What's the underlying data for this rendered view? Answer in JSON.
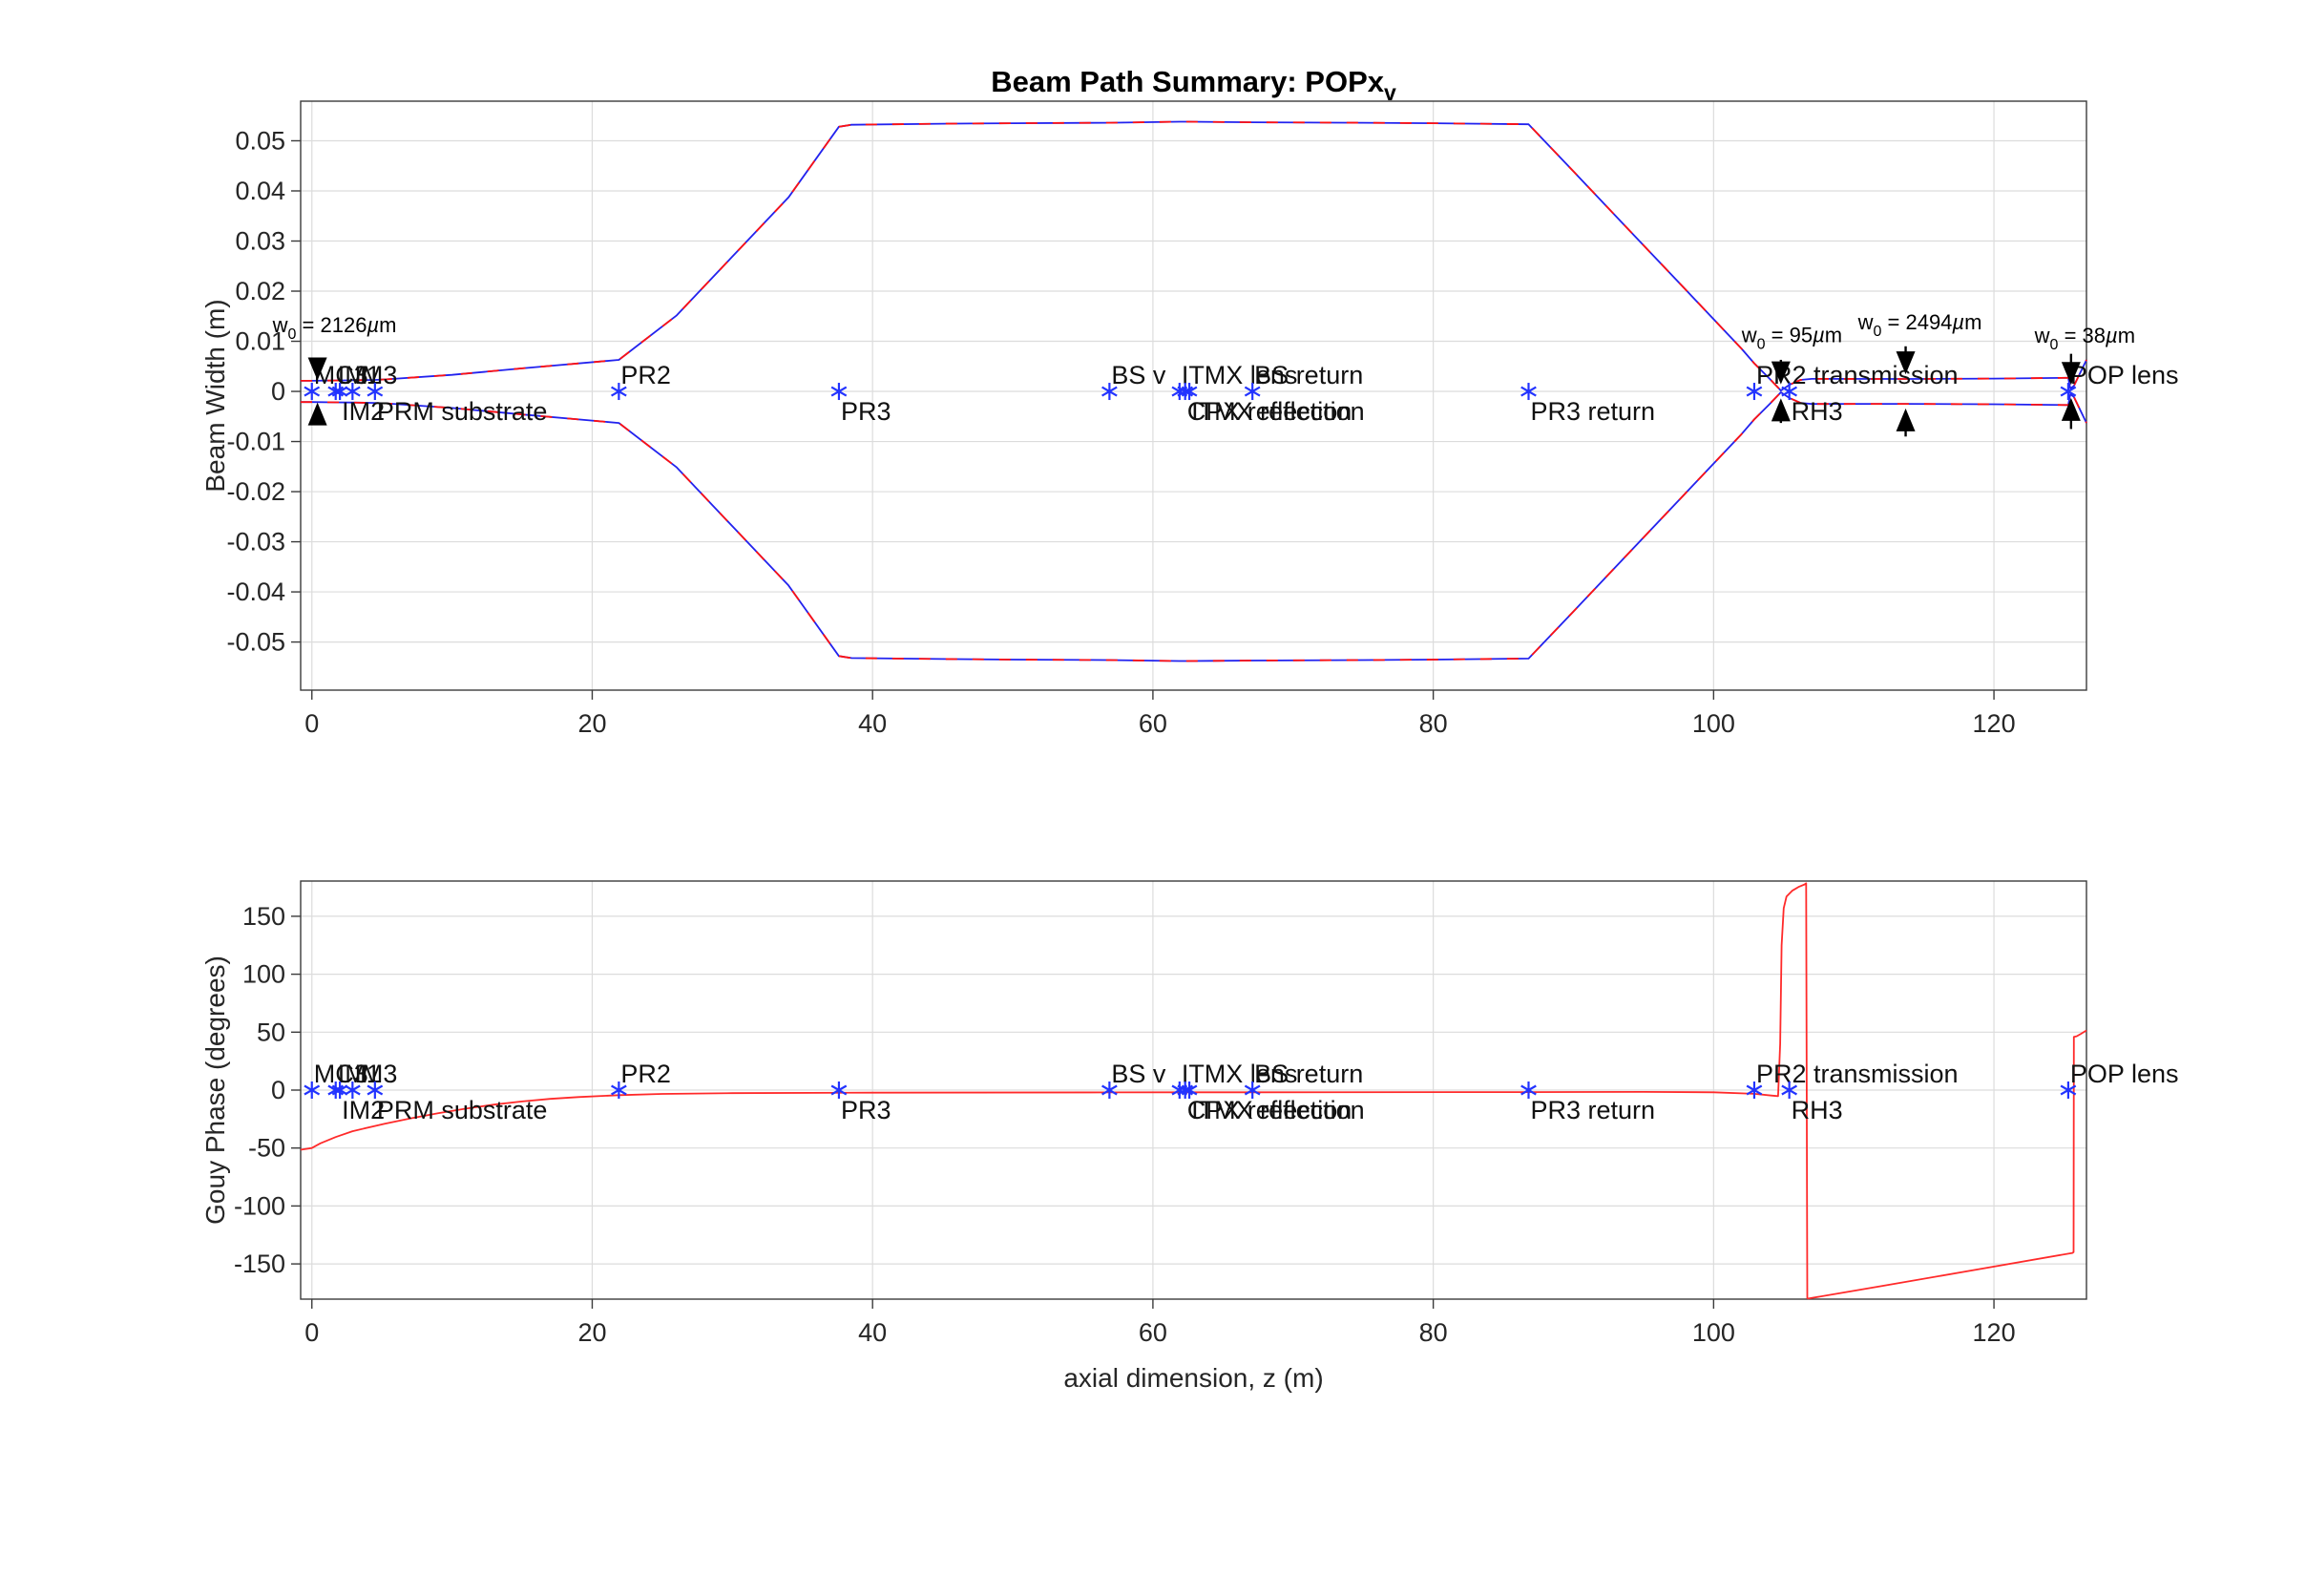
{
  "figure": {
    "background": "#ffffff",
    "title": "Beam Path Summary: POPx_v",
    "title_main": "Beam Path Summary: POPx",
    "title_subscript": "v"
  },
  "colors": {
    "beam_blue": "#2222ee",
    "beam_red": "#ff1111",
    "marker_blue": "#2233ff",
    "gouy_red": "#ff2a2a",
    "axis": "#3b3b3b",
    "grid": "#dcdcdc",
    "text": "#111111",
    "annotation": "#000000"
  },
  "chart_data": [
    {
      "type": "line",
      "title": "Beam Path Summary: POPx_v",
      "ylabel": "Beam Width (m)",
      "xlabel": "",
      "xlim": [
        -0.8,
        126.6
      ],
      "ylim": [
        -0.0596,
        0.0579
      ],
      "xticks": [
        0,
        20,
        40,
        60,
        80,
        100,
        120
      ],
      "yticks": [
        0.05,
        0.04,
        0.03,
        0.02,
        0.01,
        0,
        -0.01,
        -0.02,
        -0.03,
        -0.04,
        -0.05
      ],
      "grid": true,
      "legend": "none",
      "series": [
        {
          "name": "beam envelope (blue trace)",
          "color": "#2222ee",
          "style": "solid",
          "mirrored": true
        },
        {
          "name": "beam envelope (red trace)",
          "color": "#ff1111",
          "style": "dashed-overlay",
          "mirrored": true
        }
      ],
      "envelope_zw": [
        [
          -0.8,
          0.00212
        ],
        [
          0,
          0.00213
        ],
        [
          1.7,
          0.00218
        ],
        [
          2.9,
          0.00222
        ],
        [
          4.5,
          0.0023
        ],
        [
          5.2,
          0.00238
        ],
        [
          10,
          0.0033
        ],
        [
          15,
          0.0046
        ],
        [
          21.9,
          0.0063
        ],
        [
          26,
          0.0151
        ],
        [
          30,
          0.0269
        ],
        [
          34,
          0.0387
        ],
        [
          37.6,
          0.0528
        ],
        [
          38.5,
          0.0532
        ],
        [
          45,
          0.0534
        ],
        [
          50,
          0.0535
        ],
        [
          56.9,
          0.0536
        ],
        [
          61.9,
          0.0538
        ],
        [
          62.5,
          0.0538
        ],
        [
          67.1,
          0.0537
        ],
        [
          75,
          0.0536
        ],
        [
          80,
          0.0535
        ],
        [
          86.8,
          0.0533
        ],
        [
          90,
          0.0439
        ],
        [
          94,
          0.0321
        ],
        [
          98,
          0.0203
        ],
        [
          102,
          0.0085
        ],
        [
          102.9,
          0.0056
        ],
        [
          104,
          0.0025
        ],
        [
          104.8,
          0.00018
        ],
        [
          105.4,
          0.0013
        ],
        [
          106.2,
          0.0023
        ],
        [
          107,
          0.0025
        ],
        [
          113.7,
          0.00249
        ],
        [
          120,
          0.00256
        ],
        [
          125.3,
          0.00272
        ],
        [
          125.45,
          0.00055
        ],
        [
          125.7,
          0.0011
        ],
        [
          126.6,
          0.0063
        ]
      ],
      "optics": [
        {
          "label": "MC3",
          "z": 0,
          "row": "top"
        },
        {
          "label": "IM1",
          "z": 1.7,
          "row": "top"
        },
        {
          "label": "IM2",
          "z": 2.0,
          "row": "bottom"
        },
        {
          "label": "IM3",
          "z": 2.9,
          "row": "top"
        },
        {
          "label": "PRM substrate",
          "z": 4.5,
          "row": "bottom"
        },
        {
          "label": "PR2",
          "z": 21.9,
          "row": "top"
        },
        {
          "label": "PR3",
          "z": 37.6,
          "row": "bottom"
        },
        {
          "label": "BS v",
          "z": 56.9,
          "row": "top"
        },
        {
          "label": "ITMX lens",
          "z": 61.9,
          "row": "top"
        },
        {
          "label": "CPX reflection",
          "z": 62.3,
          "row": "bottom"
        },
        {
          "label": "ITMX reflection",
          "z": 62.6,
          "row": "bottom"
        },
        {
          "label": "BS return",
          "z": 67.1,
          "row": "top"
        },
        {
          "label": "PR3 return",
          "z": 86.8,
          "row": "bottom"
        },
        {
          "label": "PR2 transmission",
          "z": 102.9,
          "row": "top"
        },
        {
          "label": "RH3",
          "z": 105.4,
          "row": "bottom"
        },
        {
          "label": "POP lens",
          "z": 125.3,
          "row": "top"
        }
      ],
      "waists": [
        {
          "text": "w_0 = 2126µm",
          "value_um": "2126",
          "arrow_z": 0.4,
          "outer_w": 0.0063,
          "inner_w": 0.0022,
          "text_z": -2.8,
          "text_w": 0.0118
        },
        {
          "text": "w_0 = 95µm",
          "value_um": "95",
          "arrow_z": 104.8,
          "outer_w": 0.0063,
          "inner_w": 0.0014,
          "text_z": 102.0,
          "text_w": 0.0098
        },
        {
          "text": "w_0 = 2494µm",
          "value_um": "2494",
          "arrow_z": 113.7,
          "outer_w": 0.009,
          "inner_w": 0.0034,
          "text_z": 110.3,
          "text_w": 0.0124
        },
        {
          "text": "w_0 = 38µm",
          "value_um": "38",
          "arrow_z": 125.5,
          "outer_w": 0.0075,
          "inner_w": 0.0013,
          "text_z": 122.9,
          "text_w": 0.0097
        }
      ]
    },
    {
      "type": "line",
      "title": "",
      "ylabel": "Gouy Phase (degrees)",
      "xlabel": "axial dimension, z (m)",
      "xlim": [
        -0.8,
        126.6
      ],
      "ylim": [
        -180.4,
        180.4
      ],
      "xticks": [
        0,
        20,
        40,
        60,
        80,
        100,
        120
      ],
      "yticks": [
        150,
        100,
        50,
        0,
        -50,
        -100,
        -150
      ],
      "grid": true,
      "legend": "none",
      "series": [
        {
          "name": "Gouy phase",
          "color": "#ff2a2a",
          "style": "solid"
        }
      ],
      "gouy_zphi": [
        [
          -0.8,
          -51.5
        ],
        [
          0,
          -50
        ],
        [
          0.6,
          -46
        ],
        [
          1.7,
          -40.5
        ],
        [
          2.9,
          -35.5
        ],
        [
          4.5,
          -31
        ],
        [
          5.2,
          -29
        ],
        [
          7,
          -24.5
        ],
        [
          9,
          -20
        ],
        [
          11,
          -16
        ],
        [
          13,
          -12.5
        ],
        [
          15,
          -9.8
        ],
        [
          17,
          -7.6
        ],
        [
          19,
          -6
        ],
        [
          21.9,
          -4.4
        ],
        [
          25,
          -3.3
        ],
        [
          30,
          -2.6
        ],
        [
          40,
          -2.2
        ],
        [
          56.9,
          -2.0
        ],
        [
          62.5,
          -1.9
        ],
        [
          67.1,
          -1.9
        ],
        [
          86.8,
          -1.7
        ],
        [
          95,
          -1.6
        ],
        [
          100,
          -1.9
        ],
        [
          102.9,
          -3.2
        ],
        [
          104.2,
          -4.8
        ],
        [
          104.6,
          -5.2
        ],
        [
          104.75,
          40
        ],
        [
          104.85,
          125
        ],
        [
          105.0,
          157
        ],
        [
          105.2,
          167
        ],
        [
          105.6,
          172
        ],
        [
          106.1,
          175.5
        ],
        [
          106.5,
          177.5
        ],
        [
          106.6,
          178.5
        ],
        [
          106.68,
          -179.6
        ],
        [
          106.75,
          -179.9
        ],
        [
          112,
          -169
        ],
        [
          118,
          -156.5
        ],
        [
          125.6,
          -140.5
        ],
        [
          125.68,
          -139.9
        ],
        [
          125.7,
          46
        ],
        [
          125.9,
          46.5
        ],
        [
          126.2,
          48.5
        ],
        [
          126.6,
          51.5
        ]
      ],
      "optics": [
        {
          "label": "MC3",
          "z": 0,
          "row": "top"
        },
        {
          "label": "IM1",
          "z": 1.7,
          "row": "top"
        },
        {
          "label": "IM2",
          "z": 2.0,
          "row": "bottom"
        },
        {
          "label": "IM3",
          "z": 2.9,
          "row": "top"
        },
        {
          "label": "PRM substrate",
          "z": 4.5,
          "row": "bottom"
        },
        {
          "label": "PR2",
          "z": 21.9,
          "row": "top"
        },
        {
          "label": "PR3",
          "z": 37.6,
          "row": "bottom"
        },
        {
          "label": "BS v",
          "z": 56.9,
          "row": "top"
        },
        {
          "label": "ITMX lens",
          "z": 61.9,
          "row": "top"
        },
        {
          "label": "CPX reflection",
          "z": 62.3,
          "row": "bottom"
        },
        {
          "label": "ITMX reflection",
          "z": 62.6,
          "row": "bottom"
        },
        {
          "label": "BS return",
          "z": 67.1,
          "row": "top"
        },
        {
          "label": "PR3 return",
          "z": 86.8,
          "row": "bottom"
        },
        {
          "label": "PR2 transmission",
          "z": 102.9,
          "row": "top"
        },
        {
          "label": "RH3",
          "z": 105.4,
          "row": "bottom"
        },
        {
          "label": "POP lens",
          "z": 125.3,
          "row": "top"
        }
      ]
    }
  ]
}
